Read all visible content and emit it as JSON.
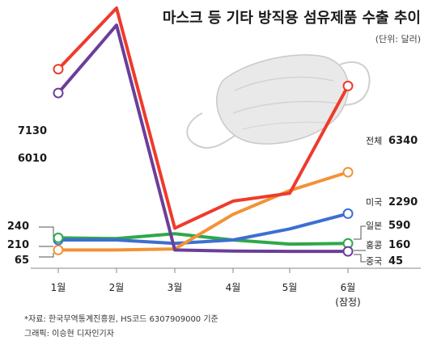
{
  "chart_data": {
    "type": "line",
    "title": "마스크 등 기타 방직용 섬유제품 수출 추이",
    "unit": "(단위: 달러)",
    "categories": [
      "1월",
      "2월",
      "3월",
      "4월",
      "5월",
      "6월"
    ],
    "last_category_note": "(잠정)",
    "series": [
      {
        "name": "전체",
        "color": "#ee3b2c",
        "values": [
          7130,
          10000,
          380,
          930,
          1300,
          6340
        ]
      },
      {
        "name": "미국",
        "color": "#f39236",
        "values": [
          65,
          65,
          80,
          580,
          1430,
          2290
        ]
      },
      {
        "name": "일본",
        "color": "#3c6fd0",
        "values": [
          210,
          210,
          160,
          210,
          370,
          590
        ]
      },
      {
        "name": "홍콩",
        "color": "#2ea84a",
        "values": [
          240,
          230,
          300,
          210,
          150,
          160
        ]
      },
      {
        "name": "중국",
        "color": "#6b3e9a",
        "values": [
          6010,
          9200,
          65,
          50,
          45,
          45
        ]
      }
    ],
    "left_labels": [
      "7130",
      "6010",
      "240",
      "210",
      "65"
    ],
    "right_labels": [
      "6340",
      "2290",
      "590",
      "160",
      "45"
    ]
  },
  "source": "*자료: 한국무역통계진흥원, HS코드 6307909000 기준",
  "credit": "그래픽: 이승현 디자인기자"
}
